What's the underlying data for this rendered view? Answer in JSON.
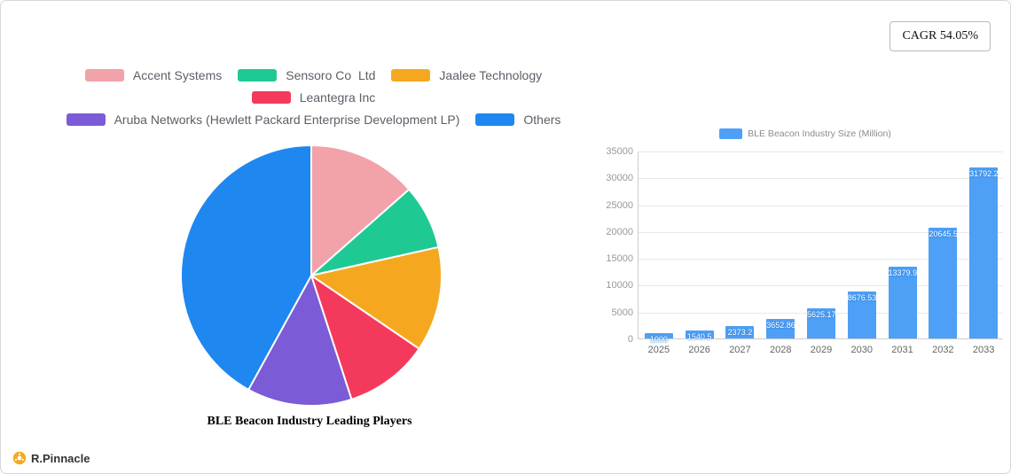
{
  "badge": {
    "text": "CAGR 54.05%"
  },
  "footer": {
    "brand": "R.Pinnacle"
  },
  "legend": {
    "rows": [
      [
        0,
        1,
        2
      ],
      [
        3
      ],
      [
        4,
        5
      ]
    ]
  },
  "chart_data": [
    {
      "type": "pie",
      "title": "BLE Beacon Industry Leading Players",
      "labels": [
        "Accent Systems",
        "Sensoro Co  Ltd",
        "Jaalee Technology",
        "Leantegra Inc",
        "Aruba Networks (Hewlett Packard Enterprise Development LP)",
        "Others"
      ],
      "values": [
        13.5,
        8,
        13,
        10.5,
        13,
        42
      ],
      "colors": [
        "#f2a2a9",
        "#1fc993",
        "#f5a81f",
        "#f43a5c",
        "#7b5cd6",
        "#1e87f0"
      ],
      "legend_position": "top"
    },
    {
      "type": "bar",
      "legend": "BLE Beacon Industry Size (Million)",
      "categories": [
        "2025",
        "2026",
        "2027",
        "2028",
        "2029",
        "2030",
        "2031",
        "2032",
        "2033"
      ],
      "values": [
        1000,
        1540.5,
        2373.2,
        3652.86,
        5625.17,
        8676.53,
        13379.97,
        20645.53,
        31792.2
      ],
      "ylim": [
        0,
        35000
      ],
      "yticks": [
        0,
        5000,
        10000,
        15000,
        20000,
        25000,
        30000,
        35000
      ],
      "bar_color": "#4da0f5",
      "grid": true,
      "xlabel": "",
      "ylabel": ""
    }
  ]
}
